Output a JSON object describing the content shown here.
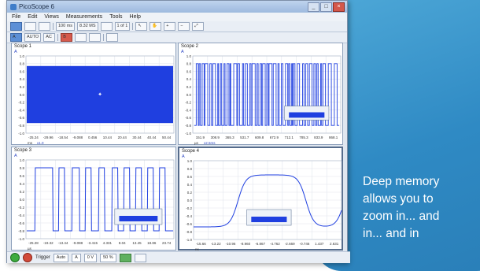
{
  "caption": {
    "lines": [
      "Deep memory",
      "allows you to",
      "zoom in... and",
      "in... and in"
    ]
  },
  "window": {
    "title": "PicoScope 6",
    "buttons": [
      "_",
      "□",
      "×"
    ]
  },
  "menu": [
    "File",
    "Edit",
    "Views",
    "Measurements",
    "Tools",
    "Help"
  ],
  "toolbar": {
    "timebase": "100 ms",
    "resolution": "8.32 MS",
    "captures": "1 of 1",
    "channel_a": "AUTO",
    "coupling": "AC"
  },
  "scopes": [
    {
      "title": "Scope 1",
      "channel": "A",
      "x_ticks": [
        "-25.24",
        "-29.96",
        "-18.54",
        "-9.088",
        "0.456",
        "10.44",
        "20.44",
        "30.44",
        "40.44",
        "50.44"
      ],
      "y_ticks": [
        "1.0",
        "0.8",
        "0.6",
        "0.4",
        "0.2",
        "0.0",
        "-0.2",
        "-0.4",
        "-0.6",
        "-0.8",
        "-1.0"
      ],
      "unit": "ms",
      "zoom": "x1.0"
    },
    {
      "title": "Scope 2",
      "channel": "A",
      "x_ticks": [
        "151.9",
        "308.9",
        "365.3",
        "531.7",
        "609.8",
        "672.9",
        "712.1",
        "785.3",
        "833.9",
        "868.1"
      ],
      "y_ticks": [
        "1.0",
        "0.8",
        "0.6",
        "0.4",
        "0.2",
        "0.0",
        "-0.2",
        "-0.4",
        "-0.6",
        "-0.8",
        "-1.0"
      ],
      "unit": "µs",
      "zoom": "x2.5ms"
    },
    {
      "title": "Scope 3",
      "channel": "A",
      "x_ticks": [
        "-25.28",
        "-19.32",
        "-13.44",
        "-9.088",
        "-3.415",
        "4.331",
        "8.04",
        "13.45",
        "18.86",
        "23.74"
      ],
      "y_ticks": [
        "1.0",
        "0.8",
        "0.6",
        "0.4",
        "0.2",
        "0.0",
        "-0.2",
        "-0.4",
        "-0.6",
        "-0.8",
        "-1.0"
      ],
      "unit": "µs",
      "zoom": ""
    },
    {
      "title": "Scope 4",
      "channel": "A",
      "x_ticks": [
        "-15.66",
        "-13.22",
        "-10.96",
        "-8.960",
        "-6.867",
        "-4.762",
        "-2.669",
        "-0.746",
        "1.437",
        "2.631"
      ],
      "y_ticks": [
        "1.0",
        "0.8",
        "0.6",
        "0.4",
        "0.2",
        "0.0",
        "-0.2",
        "-0.4",
        "-0.6",
        "-0.8",
        "-1.0"
      ],
      "unit": "ns",
      "zoom": ""
    }
  ],
  "status": {
    "trigger_label": "Trigger",
    "trigger_mode": "Auto",
    "channel": "A",
    "level": "0 V",
    "pretrigger": "50 %"
  },
  "colors": {
    "trace": "#1f3fe0",
    "panel": "#2f8ac4"
  }
}
